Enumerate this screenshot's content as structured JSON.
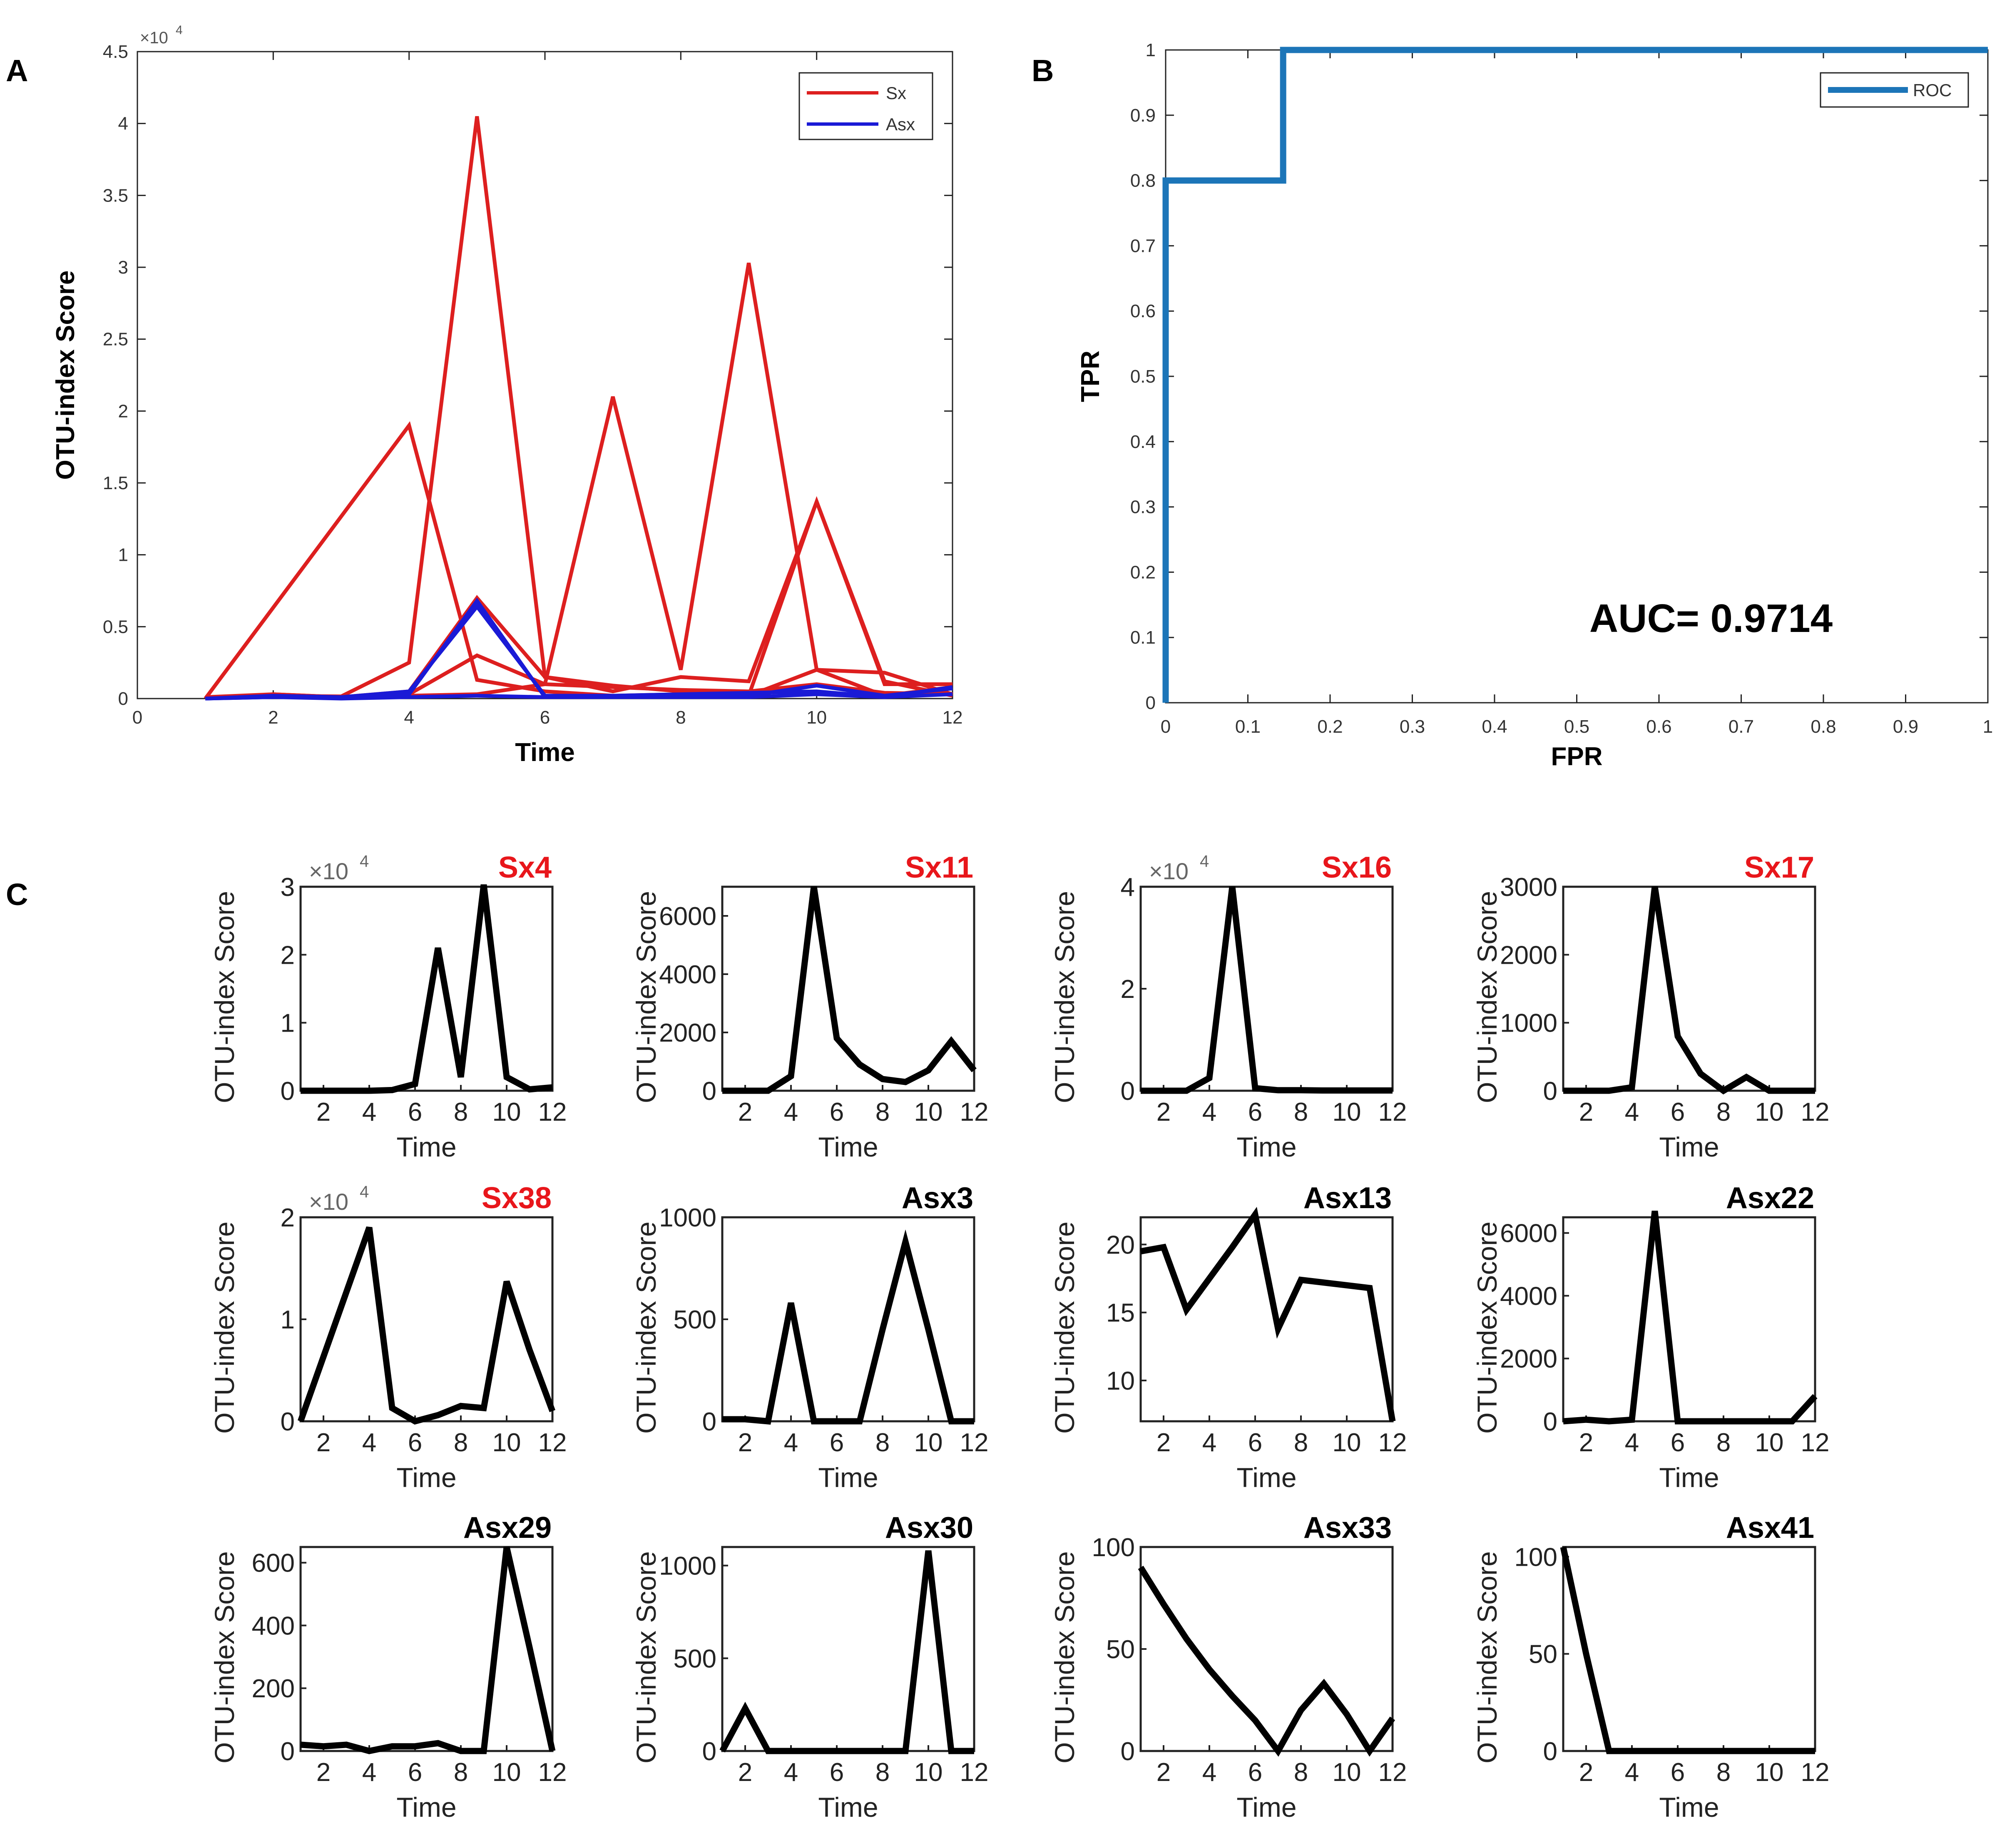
{
  "panel_labels": {
    "a": "A",
    "b": "B",
    "c": "C"
  },
  "chart_data": [
    {
      "id": "A",
      "type": "line",
      "xlabel": "Time",
      "ylabel": "OTU-index Score",
      "exponent_label": "×10",
      "exponent_power": "4",
      "xlim": [
        0,
        12
      ],
      "ylim": [
        0,
        45000
      ],
      "xticks": [
        0,
        2,
        4,
        6,
        8,
        10,
        12
      ],
      "yticks": [
        0,
        5000,
        10000,
        15000,
        20000,
        25000,
        30000,
        35000,
        40000,
        45000
      ],
      "ytick_labels": [
        "0",
        "0.5",
        "1",
        "1.5",
        "2",
        "2.5",
        "3",
        "3.5",
        "4",
        "4.5"
      ],
      "legend": [
        {
          "name": "Sx",
          "color": "#dd1f1f"
        },
        {
          "name": "Asx",
          "color": "#1a1ad6"
        }
      ],
      "series": [
        {
          "name": "Sx",
          "color": "#dd1f1f",
          "x": [
            1,
            2,
            3,
            4,
            5,
            6,
            7,
            8,
            9,
            10,
            11,
            12
          ],
          "y": [
            100,
            200,
            100,
            300,
            3000,
            1000,
            800,
            600,
            500,
            1000,
            400,
            300
          ]
        },
        {
          "name": "Sx",
          "color": "#dd1f1f",
          "x": [
            1,
            2,
            3,
            4,
            5,
            6,
            7,
            8,
            9,
            10,
            11,
            12
          ],
          "y": [
            100,
            300,
            100,
            500,
            7000,
            1500,
            900,
            500,
            200,
            2000,
            1800,
            300
          ]
        },
        {
          "name": "Sx",
          "color": "#dd1f1f",
          "x": [
            1,
            2,
            3,
            4,
            5,
            6,
            7,
            8,
            9,
            10,
            11,
            12
          ],
          "y": [
            0,
            200,
            150,
            2500,
            40500,
            1500,
            500,
            1500,
            1200,
            13700,
            1000,
            1000
          ]
        },
        {
          "name": "Sx",
          "color": "#dd1f1f",
          "x": [
            1,
            2,
            3,
            4,
            5,
            6,
            7,
            8,
            9,
            10,
            11,
            12
          ],
          "y": [
            0,
            300,
            100,
            200,
            300,
            1000,
            21000,
            2000,
            30300,
            2000,
            200,
            800
          ]
        },
        {
          "name": "Sx",
          "color": "#dd1f1f",
          "x": [
            1,
            4,
            5,
            6,
            7,
            8,
            9,
            10,
            11,
            12
          ],
          "y": [
            0,
            19000,
            1300,
            500,
            200,
            300,
            200,
            13700,
            1200,
            200
          ]
        },
        {
          "name": "Asx",
          "color": "#1a1ad6",
          "x": [
            1,
            2,
            3,
            4,
            5,
            6,
            7,
            8,
            9,
            10,
            11,
            12
          ],
          "y": [
            0,
            100,
            100,
            300,
            6800,
            100,
            100,
            100,
            200,
            900,
            200,
            700
          ]
        },
        {
          "name": "Asx",
          "color": "#1a1ad6",
          "x": [
            1,
            2,
            3,
            4,
            5,
            6,
            7,
            8,
            9,
            10,
            11,
            12
          ],
          "y": [
            0,
            200,
            100,
            500,
            6400,
            200,
            200,
            300,
            400,
            500,
            100,
            800
          ]
        },
        {
          "name": "Asx",
          "color": "#1a1ad6",
          "x": [
            1,
            2,
            3,
            4,
            5,
            6,
            7,
            8,
            9,
            10,
            11,
            12
          ],
          "y": [
            0,
            100,
            0,
            100,
            200,
            100,
            100,
            100,
            100,
            300,
            100,
            300
          ]
        }
      ]
    },
    {
      "id": "B",
      "type": "line",
      "xlabel": "FPR",
      "ylabel": "TPR",
      "xlim": [
        0,
        1
      ],
      "ylim": [
        0,
        1
      ],
      "xticks": [
        0,
        0.1,
        0.2,
        0.3,
        0.4,
        0.5,
        0.6,
        0.7,
        0.8,
        0.9,
        1
      ],
      "xtick_labels": [
        "0",
        "0.1",
        "0.2",
        "0.3",
        "0.4",
        "0.5",
        "0.6",
        "0.7",
        "0.8",
        "0.9",
        "1"
      ],
      "yticks": [
        0,
        0.1,
        0.2,
        0.3,
        0.4,
        0.5,
        0.6,
        0.7,
        0.8,
        0.9,
        1
      ],
      "ytick_labels": [
        "0",
        "0.1",
        "0.2",
        "0.3",
        "0.4",
        "0.5",
        "0.6",
        "0.7",
        "0.8",
        "0.9",
        "1"
      ],
      "legend": [
        {
          "name": "ROC",
          "color": "#1c75b8"
        }
      ],
      "annotation": "AUC= 0.9714",
      "series": [
        {
          "name": "ROC",
          "color": "#1c75b8",
          "x": [
            0,
            0,
            0.1429,
            0.1429,
            1
          ],
          "y": [
            0,
            0.8,
            0.8,
            1,
            1
          ]
        }
      ]
    },
    {
      "id": "C",
      "type": "line",
      "xlabel": "Time",
      "ylabel": "OTU-index Score",
      "subplots": [
        {
          "title": "Sx4",
          "title_color": "#e8161b",
          "exponent": "×10",
          "exponent_power": "4",
          "ylim": [
            0,
            30000
          ],
          "yticks": [
            0,
            10000,
            20000,
            30000
          ],
          "ytick_labels": [
            "0",
            "1",
            "2",
            "3"
          ],
          "xticks": [
            2,
            4,
            6,
            8,
            10,
            12
          ],
          "xtick_labels": [
            "2",
            "4",
            "6",
            "8",
            "10",
            "12"
          ],
          "x": [
            1,
            2,
            3,
            4,
            5,
            6,
            7,
            8,
            9,
            10,
            11,
            12
          ],
          "y": [
            0,
            0,
            0,
            0,
            100,
            1000,
            21000,
            2000,
            30300,
            2000,
            200,
            500
          ]
        },
        {
          "title": "Sx11",
          "title_color": "#e8161b",
          "ylim": [
            0,
            7000
          ],
          "yticks": [
            0,
            2000,
            4000,
            6000
          ],
          "ytick_labels": [
            "0",
            "2000",
            "4000",
            "6000"
          ],
          "xticks": [
            2,
            4,
            6,
            8,
            10,
            12
          ],
          "xtick_labels": [
            "2",
            "4",
            "6",
            "8",
            "10",
            "12"
          ],
          "x": [
            1,
            2,
            3,
            4,
            5,
            6,
            7,
            8,
            9,
            10,
            11,
            12
          ],
          "y": [
            0,
            0,
            0,
            500,
            7000,
            1800,
            900,
            400,
            300,
            700,
            1700,
            700
          ]
        },
        {
          "title": "Sx16",
          "title_color": "#e8161b",
          "exponent": "×10",
          "exponent_power": "4",
          "ylim": [
            0,
            40000
          ],
          "yticks": [
            0,
            20000,
            40000
          ],
          "ytick_labels": [
            "0",
            "2",
            "4"
          ],
          "xticks": [
            2,
            4,
            6,
            8,
            10,
            12
          ],
          "xtick_labels": [
            "2",
            "4",
            "6",
            "8",
            "10",
            "12"
          ],
          "x": [
            1,
            2,
            3,
            4,
            5,
            6,
            7,
            8,
            9,
            10,
            11,
            12
          ],
          "y": [
            0,
            0,
            0,
            2500,
            40000,
            500,
            100,
            100,
            50,
            50,
            50,
            50
          ]
        },
        {
          "title": "Sx17",
          "title_color": "#e8161b",
          "ylim": [
            0,
            3000
          ],
          "yticks": [
            0,
            1000,
            2000,
            3000
          ],
          "ytick_labels": [
            "0",
            "1000",
            "2000",
            "3000"
          ],
          "xticks": [
            2,
            4,
            6,
            8,
            10,
            12
          ],
          "xtick_labels": [
            "2",
            "4",
            "6",
            "8",
            "10",
            "12"
          ],
          "x": [
            1,
            2,
            3,
            4,
            5,
            6,
            7,
            8,
            9,
            10,
            11,
            12
          ],
          "y": [
            0,
            0,
            0,
            50,
            3000,
            800,
            250,
            0,
            200,
            0,
            0,
            0
          ]
        },
        {
          "title": "Sx38",
          "title_color": "#e8161b",
          "exponent": "×10",
          "exponent_power": "4",
          "ylim": [
            0,
            20000
          ],
          "yticks": [
            0,
            10000,
            20000
          ],
          "ytick_labels": [
            "0",
            "1",
            "2"
          ],
          "xticks": [
            2,
            4,
            6,
            8,
            10,
            12
          ],
          "xtick_labels": [
            "2",
            "4",
            "6",
            "8",
            "10",
            "12"
          ],
          "x": [
            1,
            4,
            5,
            6,
            7,
            8,
            9,
            10,
            11,
            12
          ],
          "y": [
            0,
            19000,
            1300,
            0,
            600,
            1500,
            1300,
            13700,
            7000,
            1000
          ]
        },
        {
          "title": "Asx3",
          "title_color": "#000000",
          "ylim": [
            0,
            1000
          ],
          "yticks": [
            0,
            500,
            1000
          ],
          "ytick_labels": [
            "0",
            "500",
            "1000"
          ],
          "xticks": [
            2,
            4,
            6,
            8,
            10,
            12
          ],
          "xtick_labels": [
            "2",
            "4",
            "6",
            "8",
            "10",
            "12"
          ],
          "x": [
            1,
            2,
            3,
            4,
            5,
            6,
            7,
            8,
            9,
            10,
            11,
            12
          ],
          "y": [
            10,
            10,
            0,
            580,
            0,
            0,
            0,
            450,
            880,
            450,
            0,
            0
          ]
        },
        {
          "title": "Asx13",
          "title_color": "#000000",
          "ylim": [
            7,
            22
          ],
          "yticks": [
            10,
            15,
            20
          ],
          "ytick_labels": [
            "10",
            "15",
            "20"
          ],
          "xticks": [
            2,
            4,
            6,
            8,
            10,
            12
          ],
          "xtick_labels": [
            "2",
            "4",
            "6",
            "8",
            "10",
            "12"
          ],
          "x": [
            1,
            2,
            3,
            4,
            5,
            6,
            7,
            8,
            9,
            10,
            11,
            12
          ],
          "y": [
            19.5,
            19.8,
            15.2,
            17.5,
            19.8,
            22.2,
            13.8,
            17.4,
            17.2,
            17.0,
            16.8,
            7.0
          ]
        },
        {
          "title": "Asx22",
          "title_color": "#000000",
          "ylim": [
            0,
            6500
          ],
          "yticks": [
            0,
            2000,
            4000,
            6000
          ],
          "ytick_labels": [
            "0",
            "2000",
            "4000",
            "6000"
          ],
          "xticks": [
            2,
            4,
            6,
            8,
            10,
            12
          ],
          "xtick_labels": [
            "2",
            "4",
            "6",
            "8",
            "10",
            "12"
          ],
          "x": [
            1,
            2,
            3,
            4,
            5,
            6,
            7,
            8,
            9,
            10,
            11,
            12
          ],
          "y": [
            0,
            50,
            0,
            50,
            6700,
            0,
            0,
            0,
            0,
            0,
            0,
            800
          ]
        },
        {
          "title": "Asx29",
          "title_color": "#000000",
          "ylim": [
            0,
            650
          ],
          "yticks": [
            0,
            200,
            400,
            600
          ],
          "ytick_labels": [
            "0",
            "200",
            "400",
            "600"
          ],
          "xticks": [
            2,
            4,
            6,
            8,
            10,
            12
          ],
          "xtick_labels": [
            "2",
            "4",
            "6",
            "8",
            "10",
            "12"
          ],
          "x": [
            1,
            2,
            3,
            4,
            5,
            6,
            7,
            8,
            9,
            10,
            11,
            12
          ],
          "y": [
            20,
            15,
            20,
            0,
            15,
            15,
            25,
            0,
            0,
            650,
            330,
            0
          ]
        },
        {
          "title": "Asx30",
          "title_color": "#000000",
          "ylim": [
            0,
            1100
          ],
          "yticks": [
            0,
            500,
            1000
          ],
          "ytick_labels": [
            "0",
            "500",
            "1000"
          ],
          "xticks": [
            2,
            4,
            6,
            8,
            10,
            12
          ],
          "xtick_labels": [
            "2",
            "4",
            "6",
            "8",
            "10",
            "12"
          ],
          "x": [
            1,
            2,
            3,
            4,
            5,
            6,
            7,
            8,
            9,
            10,
            11,
            12
          ],
          "y": [
            0,
            230,
            0,
            0,
            0,
            0,
            0,
            0,
            0,
            1080,
            0,
            0
          ]
        },
        {
          "title": "Asx33",
          "title_color": "#000000",
          "ylim": [
            0,
            100
          ],
          "yticks": [
            0,
            50,
            100
          ],
          "ytick_labels": [
            "0",
            "50",
            "100"
          ],
          "xticks": [
            2,
            4,
            6,
            8,
            10,
            12
          ],
          "xtick_labels": [
            "2",
            "4",
            "6",
            "8",
            "10",
            "12"
          ],
          "x": [
            1,
            2,
            3,
            4,
            5,
            6,
            7,
            8,
            9,
            10,
            11,
            12
          ],
          "y": [
            90,
            72,
            55,
            40,
            27,
            15,
            0,
            20,
            33,
            18,
            0,
            16
          ]
        },
        {
          "title": "Asx41",
          "title_color": "#000000",
          "ylim": [
            0,
            105
          ],
          "yticks": [
            0,
            50,
            100
          ],
          "ytick_labels": [
            "0",
            "50",
            "100"
          ],
          "xticks": [
            2,
            4,
            6,
            8,
            10,
            12
          ],
          "xtick_labels": [
            "2",
            "4",
            "6",
            "8",
            "10",
            "12"
          ],
          "x": [
            1,
            2,
            3,
            4,
            5,
            6,
            7,
            8,
            9,
            10,
            11,
            12
          ],
          "y": [
            105,
            50,
            0,
            0,
            0,
            0,
            0,
            0,
            0,
            0,
            0,
            0
          ]
        }
      ]
    }
  ]
}
